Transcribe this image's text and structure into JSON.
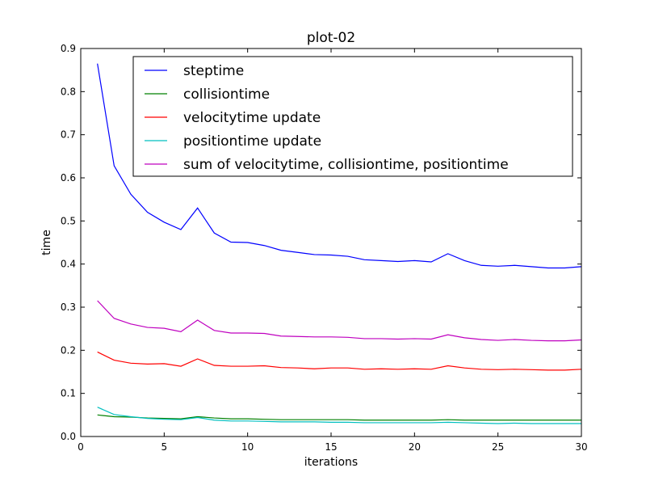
{
  "chart_data": {
    "type": "line",
    "title": "plot-02",
    "xlabel": "iterations",
    "ylabel": "time",
    "xlim": [
      0,
      30
    ],
    "ylim": [
      0,
      0.9
    ],
    "xticks": [
      0,
      5,
      10,
      15,
      20,
      25,
      30
    ],
    "xtick_labels": [
      "0",
      "5",
      "10",
      "15",
      "20",
      "25",
      "30"
    ],
    "yticks": [
      0.0,
      0.1,
      0.2,
      0.3,
      0.4,
      0.5,
      0.6,
      0.7,
      0.8,
      0.9
    ],
    "ytick_labels": [
      "0.0",
      "0.1",
      "0.2",
      "0.3",
      "0.4",
      "0.5",
      "0.6",
      "0.7",
      "0.8",
      "0.9"
    ],
    "grid": false,
    "legend_position": "top-right",
    "x": [
      1,
      2,
      3,
      4,
      5,
      6,
      7,
      8,
      9,
      10,
      11,
      12,
      13,
      14,
      15,
      16,
      17,
      18,
      19,
      20,
      21,
      22,
      23,
      24,
      25,
      26,
      27,
      28,
      29,
      30
    ],
    "series": [
      {
        "name": "steptime",
        "color": "#0000ff",
        "values": [
          0.865,
          0.628,
          0.562,
          0.52,
          0.497,
          0.48,
          0.53,
          0.472,
          0.451,
          0.45,
          0.443,
          0.432,
          0.427,
          0.422,
          0.421,
          0.418,
          0.41,
          0.408,
          0.406,
          0.408,
          0.405,
          0.424,
          0.408,
          0.397,
          0.395,
          0.397,
          0.394,
          0.391,
          0.391,
          0.394
        ]
      },
      {
        "name": "collisiontime",
        "color": "#008000",
        "values": [
          0.05,
          0.046,
          0.045,
          0.043,
          0.042,
          0.041,
          0.046,
          0.043,
          0.041,
          0.041,
          0.04,
          0.039,
          0.039,
          0.039,
          0.039,
          0.039,
          0.038,
          0.038,
          0.038,
          0.038,
          0.038,
          0.039,
          0.038,
          0.038,
          0.038,
          0.038,
          0.038,
          0.038,
          0.038,
          0.038
        ]
      },
      {
        "name": "velocitytime update",
        "color": "#ff0000",
        "values": [
          0.196,
          0.177,
          0.17,
          0.168,
          0.169,
          0.163,
          0.18,
          0.165,
          0.163,
          0.163,
          0.164,
          0.16,
          0.159,
          0.157,
          0.159,
          0.159,
          0.156,
          0.157,
          0.156,
          0.157,
          0.156,
          0.164,
          0.159,
          0.156,
          0.155,
          0.156,
          0.155,
          0.154,
          0.154,
          0.156
        ]
      },
      {
        "name": "positiontime update",
        "color": "#00bfbf",
        "values": [
          0.068,
          0.051,
          0.046,
          0.042,
          0.04,
          0.039,
          0.044,
          0.038,
          0.036,
          0.036,
          0.035,
          0.034,
          0.034,
          0.034,
          0.033,
          0.033,
          0.032,
          0.032,
          0.032,
          0.032,
          0.032,
          0.033,
          0.032,
          0.031,
          0.03,
          0.031,
          0.03,
          0.03,
          0.03,
          0.03
        ]
      },
      {
        "name": "sum of velocitytime, collisiontime, positiontime",
        "color": "#bf00bf",
        "values": [
          0.315,
          0.274,
          0.261,
          0.253,
          0.251,
          0.243,
          0.27,
          0.246,
          0.24,
          0.24,
          0.239,
          0.233,
          0.232,
          0.231,
          0.231,
          0.23,
          0.227,
          0.227,
          0.226,
          0.227,
          0.226,
          0.236,
          0.229,
          0.225,
          0.223,
          0.225,
          0.223,
          0.222,
          0.222,
          0.224
        ]
      }
    ]
  }
}
